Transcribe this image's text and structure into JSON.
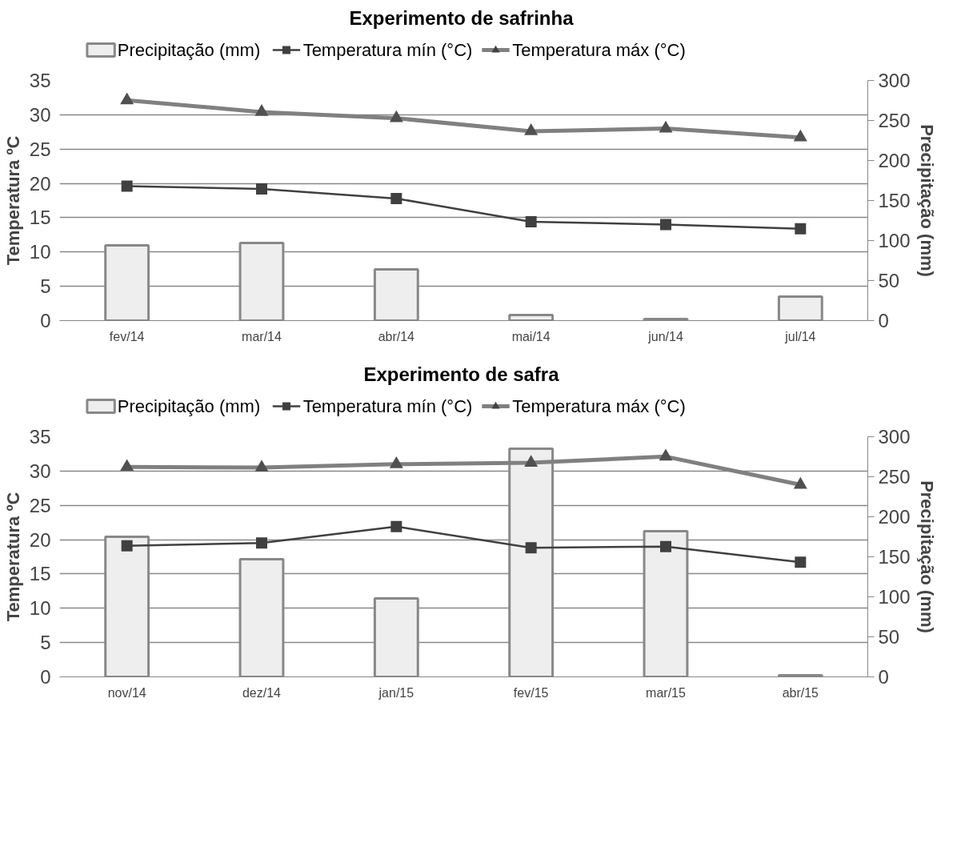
{
  "chart_data": [
    {
      "type": "bar",
      "title": "Experimento de safrinha",
      "ylabel": "Temperatura ºC",
      "y2label": "Precipitação (mm)",
      "categories": [
        "fev/14",
        "mar/14",
        "abr/14",
        "mai/14",
        "jun/14",
        "jul/14"
      ],
      "ylim": [
        0,
        35
      ],
      "yticks": [
        0,
        5,
        10,
        15,
        20,
        25,
        30,
        35
      ],
      "y2lim": [
        0,
        300
      ],
      "y2ticks": [
        0,
        50,
        100,
        150,
        200,
        250,
        300
      ],
      "grid": "y",
      "legend": "top",
      "series": [
        {
          "name": "Precipitação (mm)",
          "axis": "y2",
          "color": "#eeeeee",
          "values": [
            94,
            97,
            64,
            7,
            2,
            30
          ]
        },
        {
          "name": "Temperatura mín (°C)",
          "type": "line",
          "marker": "square",
          "color": "#404040",
          "values": [
            19.6,
            19.2,
            17.8,
            14.4,
            14.0,
            13.4
          ]
        },
        {
          "name": "Temperatura máx (°C)",
          "type": "line",
          "marker": "triangle",
          "color": "#808080",
          "values": [
            32.1,
            30.4,
            29.5,
            27.6,
            28.0,
            26.7
          ]
        }
      ]
    },
    {
      "type": "bar",
      "title": "Experimento de safra",
      "ylabel": "Temperatura ºC",
      "y2label": "Precipitação (mm)",
      "categories": [
        "nov/14",
        "dez/14",
        "jan/15",
        "fev/15",
        "mar/15",
        "abr/15"
      ],
      "ylim": [
        0,
        35
      ],
      "yticks": [
        0,
        5,
        10,
        15,
        20,
        25,
        30,
        35
      ],
      "y2lim": [
        0,
        300
      ],
      "y2ticks": [
        0,
        50,
        100,
        150,
        200,
        250,
        300
      ],
      "grid": "y",
      "legend": "top",
      "series": [
        {
          "name": "Precipitação (mm)",
          "axis": "y2",
          "color": "#eeeeee",
          "values": [
            175,
            147,
            98,
            285,
            182,
            2
          ]
        },
        {
          "name": "Temperatura mín (°C)",
          "type": "line",
          "marker": "square",
          "color": "#404040",
          "values": [
            19.1,
            19.5,
            21.9,
            18.8,
            19.0,
            16.7
          ]
        },
        {
          "name": "Temperatura máx (°C)",
          "type": "line",
          "marker": "triangle",
          "color": "#808080",
          "values": [
            30.6,
            30.5,
            31.0,
            31.2,
            32.1,
            28.0
          ]
        }
      ]
    }
  ]
}
